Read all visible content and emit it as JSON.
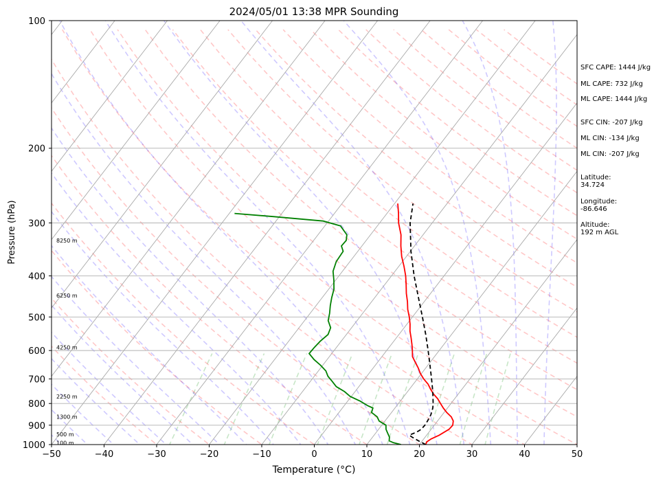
{
  "chart_data": {
    "type": "line",
    "title": "2024/05/01 13:38 MPR Sounding",
    "xlabel": "Temperature (°C)",
    "ylabel": "Pressure (hPa)",
    "xlim": [
      -50,
      50
    ],
    "ylim": [
      1000,
      100
    ],
    "y_scale": "log",
    "x_ticks": [
      -50,
      -40,
      -30,
      -20,
      -10,
      0,
      10,
      20,
      30,
      40,
      50
    ],
    "y_ticks": [
      1000,
      900,
      800,
      700,
      600,
      500,
      400,
      300,
      200,
      100
    ],
    "grid": true,
    "height_labels": [
      {
        "text": "100 m",
        "p": 990
      },
      {
        "text": "500 m",
        "p": 945
      },
      {
        "text": "1300 m",
        "p": 860
      },
      {
        "text": "2250 m",
        "p": 770
      },
      {
        "text": "4250 m",
        "p": 590
      },
      {
        "text": "6250 m",
        "p": 445
      },
      {
        "text": "8250 m",
        "p": 330
      }
    ],
    "series": [
      {
        "color": "#ff0000",
        "points": [
          [
            1000,
            21.2
          ],
          [
            985,
            21.0
          ],
          [
            970,
            21.4
          ],
          [
            950,
            22.4
          ],
          [
            920,
            23.4
          ],
          [
            900,
            23.5
          ],
          [
            880,
            23.0
          ],
          [
            860,
            22.0
          ],
          [
            840,
            20.5
          ],
          [
            820,
            19.2
          ],
          [
            800,
            18.0
          ],
          [
            780,
            16.8
          ],
          [
            760,
            15.3
          ],
          [
            740,
            14.0
          ],
          [
            720,
            12.8
          ],
          [
            700,
            11.2
          ],
          [
            680,
            9.8
          ],
          [
            660,
            8.6
          ],
          [
            640,
            7.2
          ],
          [
            620,
            5.8
          ],
          [
            600,
            4.9
          ],
          [
            580,
            3.9
          ],
          [
            560,
            2.8
          ],
          [
            540,
            1.6
          ],
          [
            520,
            0.6
          ],
          [
            500,
            -0.6
          ],
          [
            480,
            -2.0
          ],
          [
            460,
            -3.2
          ],
          [
            440,
            -4.6
          ],
          [
            420,
            -5.9
          ],
          [
            400,
            -7.3
          ],
          [
            380,
            -9.0
          ],
          [
            360,
            -10.9
          ],
          [
            340,
            -12.6
          ],
          [
            320,
            -14.2
          ],
          [
            300,
            -16.4
          ],
          [
            285,
            -17.8
          ],
          [
            270,
            -19.4
          ]
        ]
      },
      {
        "color": "#008000",
        "points": [
          [
            1000,
            16.5
          ],
          [
            990,
            14.8
          ],
          [
            980,
            13.7
          ],
          [
            960,
            13.2
          ],
          [
            940,
            12.3
          ],
          [
            920,
            11.4
          ],
          [
            900,
            10.8
          ],
          [
            880,
            8.9
          ],
          [
            860,
            7.9
          ],
          [
            840,
            6.2
          ],
          [
            820,
            5.8
          ],
          [
            810,
            4.5
          ],
          [
            790,
            2.4
          ],
          [
            770,
            -0.2
          ],
          [
            750,
            -2.0
          ],
          [
            730,
            -4.3
          ],
          [
            710,
            -5.8
          ],
          [
            690,
            -7.4
          ],
          [
            670,
            -8.6
          ],
          [
            650,
            -10.4
          ],
          [
            630,
            -12.5
          ],
          [
            610,
            -14.3
          ],
          [
            590,
            -14.2
          ],
          [
            570,
            -14.0
          ],
          [
            550,
            -13.5
          ],
          [
            530,
            -14.0
          ],
          [
            510,
            -15.5
          ],
          [
            490,
            -16.3
          ],
          [
            470,
            -17.3
          ],
          [
            450,
            -18.2
          ],
          [
            430,
            -19.0
          ],
          [
            410,
            -20.3
          ],
          [
            390,
            -21.8
          ],
          [
            370,
            -22.6
          ],
          [
            350,
            -22.8
          ],
          [
            340,
            -23.9
          ],
          [
            330,
            -23.8
          ],
          [
            320,
            -24.5
          ],
          [
            305,
            -27.0
          ],
          [
            297,
            -31.0
          ],
          [
            290,
            -41.0
          ],
          [
            285,
            -49.0
          ]
        ]
      },
      {
        "color": "#000000",
        "dashed": true,
        "points": [
          [
            1000,
            21.2
          ],
          [
            980,
            19.3
          ],
          [
            960,
            17.5
          ],
          [
            950,
            16.7
          ],
          [
            940,
            17.3
          ],
          [
            930,
            17.8
          ],
          [
            920,
            18.1
          ],
          [
            900,
            18.2
          ],
          [
            880,
            18.1
          ],
          [
            850,
            17.8
          ],
          [
            820,
            17.2
          ],
          [
            800,
            16.6
          ],
          [
            750,
            14.8
          ],
          [
            700,
            12.7
          ],
          [
            650,
            10.4
          ],
          [
            600,
            7.9
          ],
          [
            550,
            5.1
          ],
          [
            500,
            1.9
          ],
          [
            450,
            -1.7
          ],
          [
            400,
            -5.7
          ],
          [
            350,
            -9.9
          ],
          [
            300,
            -14.2
          ],
          [
            270,
            -16.5
          ]
        ]
      }
    ]
  },
  "info_panel": {
    "sfc_cape": "SFC CAPE: 1444 J/kg",
    "ml_cape_1": "ML CAPE: 732 J/kg",
    "ml_cape_2": "ML CAPE: 1444 J/kg",
    "sfc_cin": "SFC CIN: -207 J/kg",
    "ml_cin_1": "ML CIN: -134 J/kg",
    "ml_cin_2": "ML CIN: -207 J/kg",
    "latitude": "Latitude:\n34.724",
    "longitude": "Longitude:\n-86.646",
    "altitude": "Altitude:\n192 m AGL"
  }
}
